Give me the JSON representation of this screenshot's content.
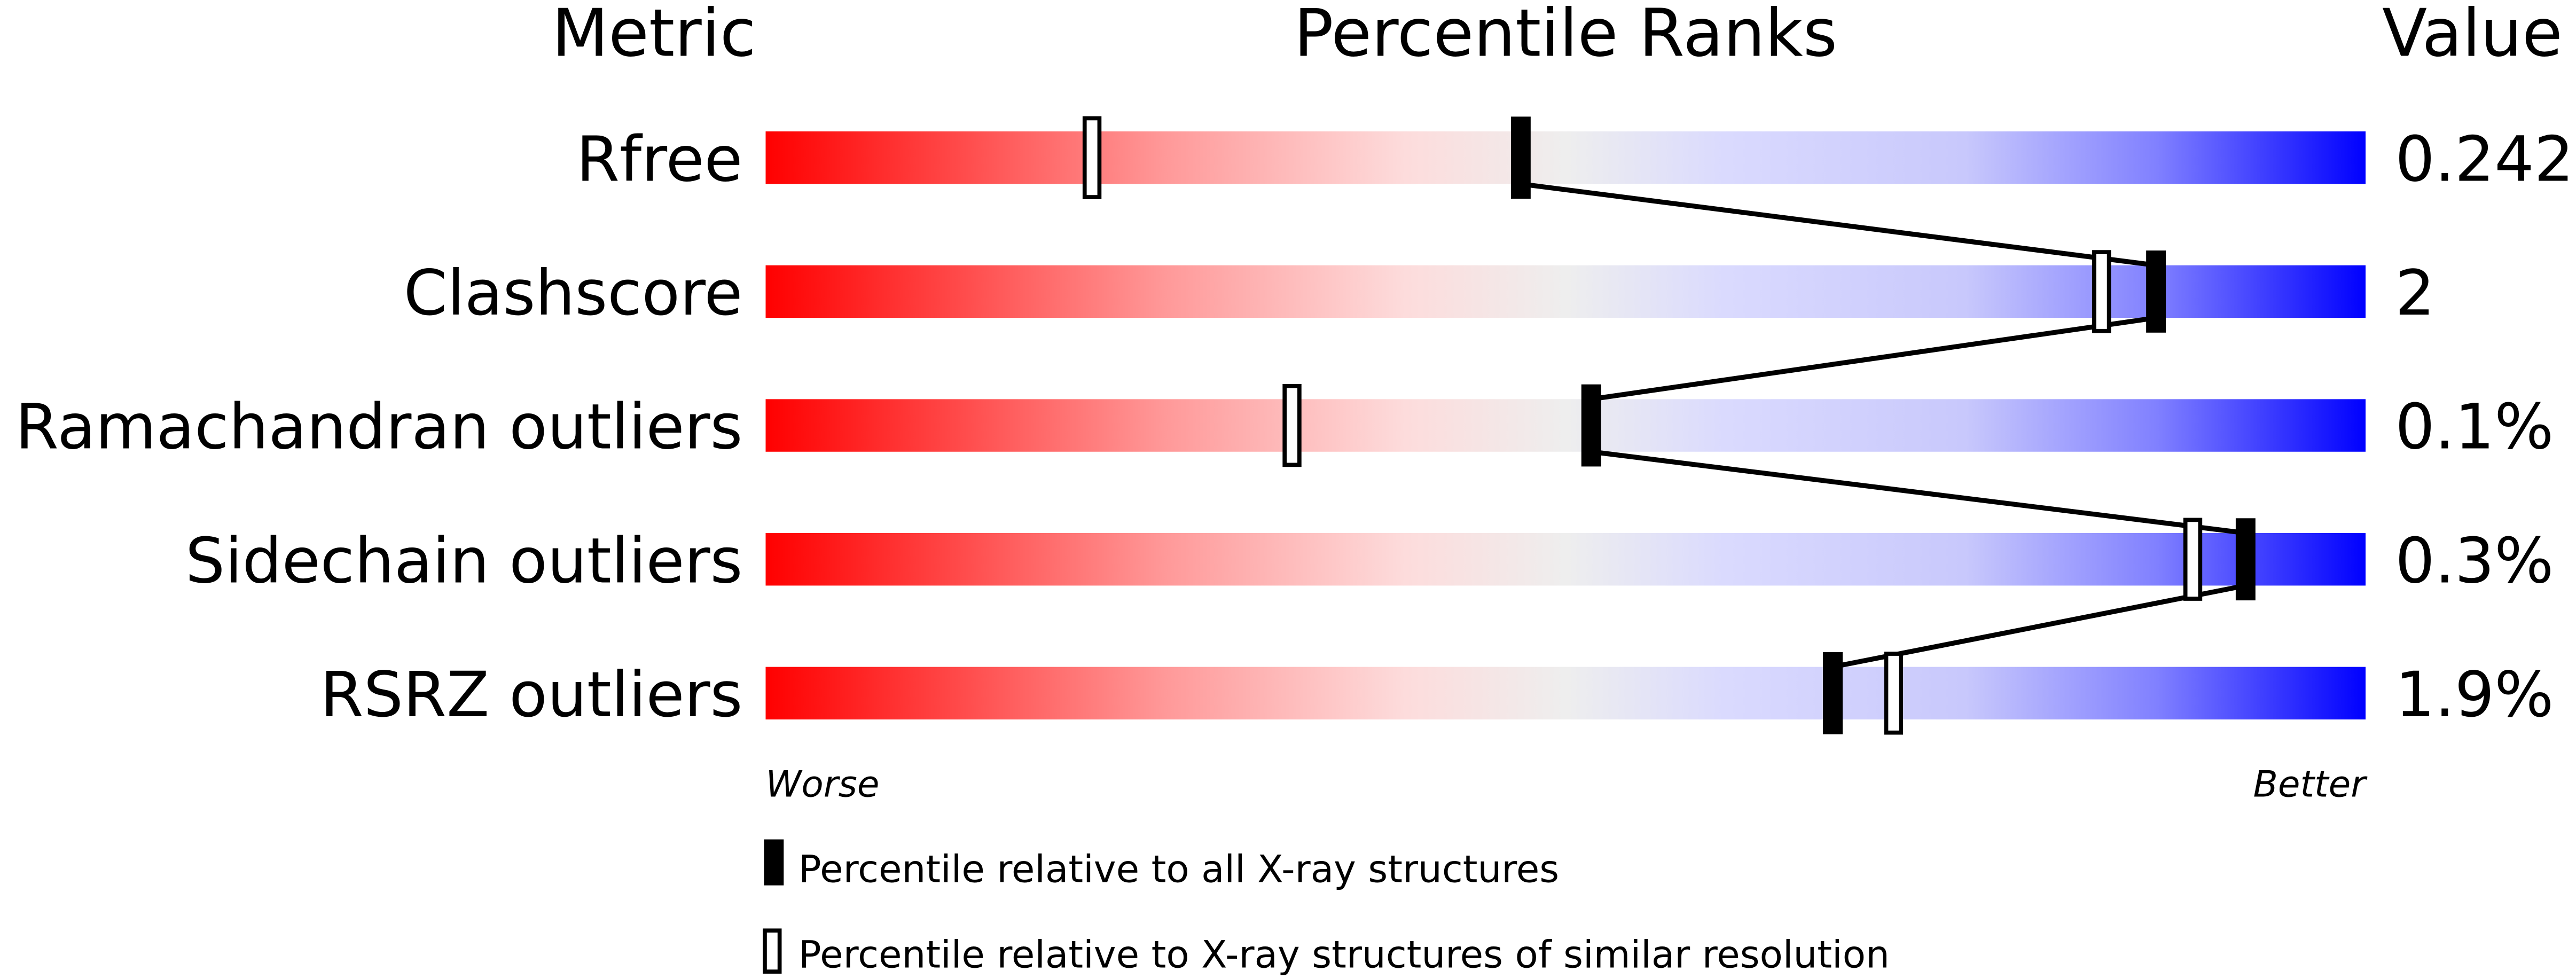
{
  "chart_data": {
    "type": "percentile-ranks",
    "headers": {
      "metric": "Metric",
      "ranks": "Percentile Ranks",
      "value": "Value"
    },
    "xlim": [
      0,
      100
    ],
    "axis_labels": {
      "left": "Worse",
      "right": "Better"
    },
    "gradient_colors": [
      "#ff0000",
      "#eeeeee",
      "#dadafe",
      "#0000ff"
    ],
    "metrics": [
      {
        "name": "Rfree",
        "value": "0.242",
        "percentile_all": 47.2,
        "percentile_similar": 20.4
      },
      {
        "name": "Clashscore",
        "value": "2",
        "percentile_all": 86.9,
        "percentile_similar": 83.5
      },
      {
        "name": "Ramachandran outliers",
        "value": "0.1%",
        "percentile_all": 51.6,
        "percentile_similar": 32.9
      },
      {
        "name": "Sidechain outliers",
        "value": "0.3%",
        "percentile_all": 92.5,
        "percentile_similar": 89.2
      },
      {
        "name": "RSRZ outliers",
        "value": "1.9%",
        "percentile_all": 66.7,
        "percentile_similar": 70.5
      }
    ],
    "legend": [
      {
        "marker": "filled",
        "label": "Percentile relative to all X-ray structures"
      },
      {
        "marker": "open",
        "label": "Percentile relative to X-ray structures of similar resolution"
      }
    ]
  }
}
